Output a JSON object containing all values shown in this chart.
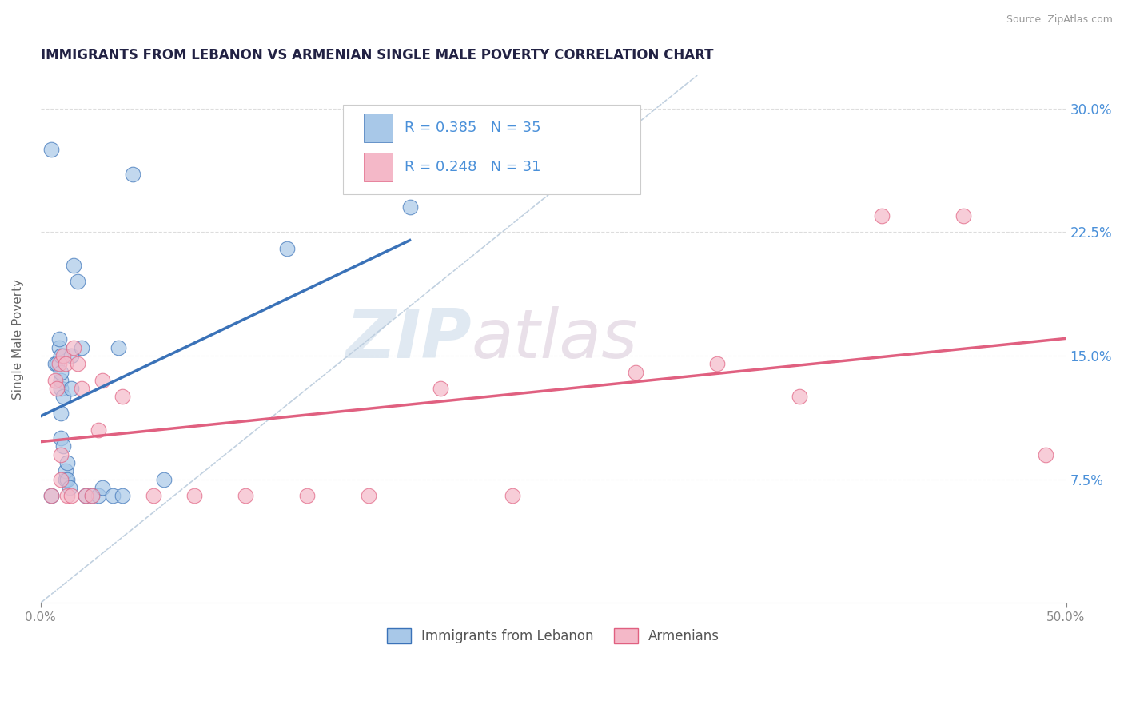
{
  "title": "IMMIGRANTS FROM LEBANON VS ARMENIAN SINGLE MALE POVERTY CORRELATION CHART",
  "source": "Source: ZipAtlas.com",
  "ylabel": "Single Male Poverty",
  "xlim": [
    0.0,
    0.5
  ],
  "ylim": [
    0.0,
    0.32
  ],
  "xtick_positions": [
    0.0,
    0.5
  ],
  "xtick_labels": [
    "0.0%",
    "50.0%"
  ],
  "ytick_labels": [
    "7.5%",
    "15.0%",
    "22.5%",
    "30.0%"
  ],
  "ytick_values": [
    0.075,
    0.15,
    0.225,
    0.3
  ],
  "legend_r1": "R = 0.385",
  "legend_n1": "N = 35",
  "legend_r2": "R = 0.248",
  "legend_n2": "N = 31",
  "color_blue": "#A8C8E8",
  "color_pink": "#F4B8C8",
  "color_line_blue": "#3A72B8",
  "color_line_pink": "#E06080",
  "color_legend_text": "#4A90D9",
  "watermark_zip": "ZIP",
  "watermark_atlas": "atlas",
  "watermark_color_zip": "#C8D8E8",
  "watermark_color_atlas": "#D8C8D8",
  "lebanon_x": [
    0.005,
    0.005,
    0.007,
    0.008,
    0.009,
    0.009,
    0.01,
    0.01,
    0.01,
    0.01,
    0.01,
    0.01,
    0.011,
    0.011,
    0.012,
    0.012,
    0.013,
    0.013,
    0.014,
    0.015,
    0.015,
    0.016,
    0.018,
    0.02,
    0.022,
    0.025,
    0.028,
    0.03,
    0.035,
    0.038,
    0.04,
    0.045,
    0.06,
    0.12,
    0.18
  ],
  "lebanon_y": [
    0.275,
    0.065,
    0.145,
    0.145,
    0.155,
    0.16,
    0.13,
    0.135,
    0.14,
    0.15,
    0.1,
    0.115,
    0.095,
    0.125,
    0.075,
    0.08,
    0.075,
    0.085,
    0.07,
    0.13,
    0.15,
    0.205,
    0.195,
    0.155,
    0.065,
    0.065,
    0.065,
    0.07,
    0.065,
    0.155,
    0.065,
    0.26,
    0.075,
    0.215,
    0.24
  ],
  "armenian_x": [
    0.005,
    0.007,
    0.008,
    0.009,
    0.01,
    0.01,
    0.011,
    0.012,
    0.013,
    0.015,
    0.016,
    0.018,
    0.02,
    0.022,
    0.025,
    0.028,
    0.03,
    0.04,
    0.055,
    0.075,
    0.1,
    0.13,
    0.16,
    0.195,
    0.23,
    0.29,
    0.33,
    0.37,
    0.41,
    0.45,
    0.49
  ],
  "armenian_y": [
    0.065,
    0.135,
    0.13,
    0.145,
    0.075,
    0.09,
    0.15,
    0.145,
    0.065,
    0.065,
    0.155,
    0.145,
    0.13,
    0.065,
    0.065,
    0.105,
    0.135,
    0.125,
    0.065,
    0.065,
    0.065,
    0.065,
    0.065,
    0.13,
    0.065,
    0.14,
    0.145,
    0.125,
    0.235,
    0.235,
    0.09
  ]
}
